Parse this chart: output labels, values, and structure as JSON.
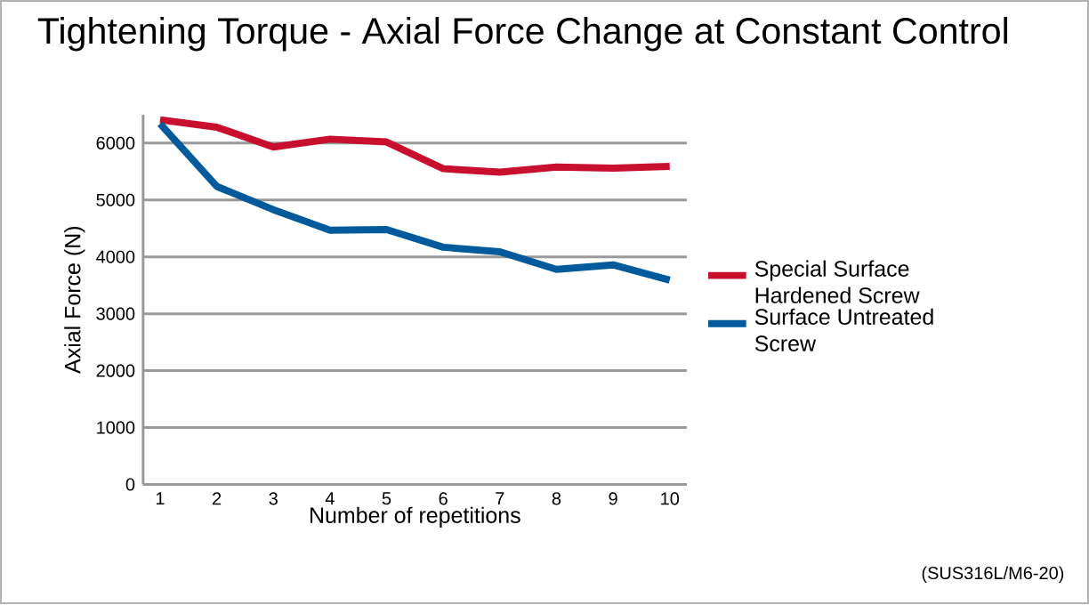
{
  "chart_data": {
    "type": "line",
    "title": "Tightening Torque - Axial Force Change at Constant Control",
    "xlabel": "Number of repetitions",
    "ylabel": "Axial Force (N)",
    "categories": [
      "1",
      "2",
      "3",
      "4",
      "5",
      "6",
      "7",
      "8",
      "9",
      "10"
    ],
    "series": [
      {
        "name": "Special Surface Hardened Screw",
        "color": "#c8102e",
        "values": [
          6410,
          6280,
          5930,
          6070,
          6020,
          5550,
          5490,
          5580,
          5560,
          5590
        ]
      },
      {
        "name": "Surface Untreated Screw",
        "color": "#005a9c",
        "values": [
          6340,
          5240,
          4830,
          4470,
          4480,
          4170,
          4090,
          3780,
          3860,
          3590
        ]
      }
    ],
    "ylim": [
      0,
      6500
    ],
    "yticks": [
      0,
      1000,
      2000,
      3000,
      4000,
      5000,
      6000
    ],
    "grid": "y",
    "legend": "right",
    "annotations": [
      "(SUS316L/M6-20)"
    ]
  }
}
